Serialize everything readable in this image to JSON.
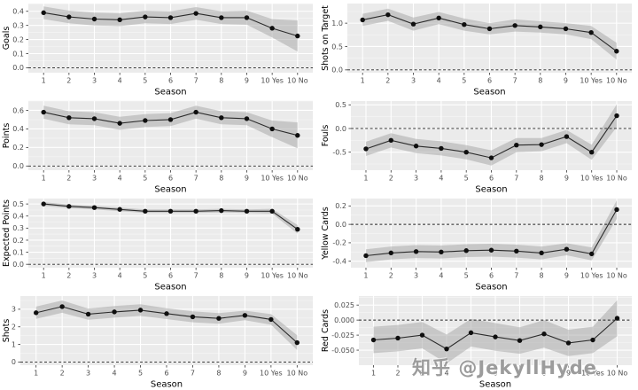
{
  "watermark": {
    "text": "知乎 @JekyllHyde",
    "color": "#949494"
  },
  "theme": {
    "panel_bg": "#EBEBEB",
    "grid_major": "#FFFFFF",
    "grid_minor": "#F5F5F5",
    "ribbon": "#A3A3A3",
    "ribbon_opacity": 0.5,
    "line": "#2B2B2B",
    "point": "#0F0F0F",
    "tick_text": "#4D4D4D",
    "axis_title": "#000000",
    "zero_line": "#222222"
  },
  "chart_data": [
    {
      "name": "goals",
      "type": "line",
      "xlabel": "Season",
      "ylabel": "Goals",
      "categories": [
        "1",
        "2",
        "3",
        "4",
        "5",
        "6",
        "7",
        "8",
        "9",
        "10 Yes",
        "10 No"
      ],
      "values": [
        0.39,
        0.36,
        0.345,
        0.34,
        0.36,
        0.355,
        0.385,
        0.355,
        0.355,
        0.28,
        0.225
      ],
      "lower": [
        0.345,
        0.315,
        0.3,
        0.295,
        0.315,
        0.31,
        0.34,
        0.31,
        0.305,
        0.215,
        0.115
      ],
      "upper": [
        0.435,
        0.405,
        0.39,
        0.385,
        0.405,
        0.4,
        0.43,
        0.4,
        0.405,
        0.345,
        0.335
      ],
      "yticks": [
        0.0,
        0.1,
        0.2,
        0.3,
        0.4
      ],
      "ytick_labels": [
        "0.0",
        "0.1",
        "0.2",
        "0.3",
        "0.4"
      ],
      "ylim": [
        -0.035,
        0.455
      ],
      "ref_line": 0
    },
    {
      "name": "shots-on-target",
      "type": "line",
      "xlabel": "Season",
      "ylabel": "Shots on Target",
      "categories": [
        "1",
        "2",
        "3",
        "4",
        "5",
        "6",
        "7",
        "8",
        "9",
        "10 Yes",
        "10 No"
      ],
      "values": [
        1.07,
        1.18,
        0.98,
        1.11,
        0.97,
        0.88,
        0.95,
        0.92,
        0.88,
        0.8,
        0.4
      ],
      "lower": [
        0.94,
        1.05,
        0.84,
        0.98,
        0.84,
        0.76,
        0.82,
        0.8,
        0.76,
        0.66,
        0.22
      ],
      "upper": [
        1.2,
        1.31,
        1.12,
        1.24,
        1.1,
        1.0,
        1.08,
        1.04,
        1.0,
        0.94,
        0.58
      ],
      "yticks": [
        0.0,
        0.5,
        1.0
      ],
      "ytick_labels": [
        "0.0",
        "0.5",
        "1.0"
      ],
      "ylim": [
        -0.06,
        1.42
      ],
      "ref_line": 0
    },
    {
      "name": "points",
      "type": "line",
      "xlabel": "Season",
      "ylabel": "Points",
      "categories": [
        "1",
        "2",
        "3",
        "4",
        "5",
        "6",
        "7",
        "8",
        "9",
        "10 Yes",
        "10 No"
      ],
      "values": [
        0.58,
        0.52,
        0.51,
        0.46,
        0.49,
        0.5,
        0.58,
        0.52,
        0.51,
        0.4,
        0.33
      ],
      "lower": [
        0.51,
        0.45,
        0.44,
        0.39,
        0.42,
        0.43,
        0.51,
        0.45,
        0.44,
        0.31,
        0.19
      ],
      "upper": [
        0.65,
        0.59,
        0.58,
        0.53,
        0.56,
        0.57,
        0.65,
        0.59,
        0.58,
        0.49,
        0.47
      ],
      "yticks": [
        0.0,
        0.2,
        0.4,
        0.6
      ],
      "ytick_labels": [
        "0.0",
        "0.2",
        "0.4",
        "0.6"
      ],
      "ylim": [
        -0.045,
        0.7
      ],
      "ref_line": 0
    },
    {
      "name": "fouls",
      "type": "line",
      "xlabel": "Season",
      "ylabel": "Fouls",
      "categories": [
        "1",
        "2",
        "3",
        "4",
        "5",
        "6",
        "7",
        "8",
        "9",
        "10 Yes",
        "10 No"
      ],
      "values": [
        -0.43,
        -0.25,
        -0.37,
        -0.42,
        -0.5,
        -0.62,
        -0.35,
        -0.34,
        -0.17,
        -0.5,
        0.27
      ],
      "lower": [
        -0.58,
        -0.4,
        -0.52,
        -0.57,
        -0.65,
        -0.78,
        -0.5,
        -0.48,
        -0.31,
        -0.66,
        0.03
      ],
      "upper": [
        -0.28,
        -0.1,
        -0.22,
        -0.27,
        -0.35,
        -0.46,
        -0.2,
        -0.2,
        -0.03,
        -0.34,
        0.51
      ],
      "yticks": [
        -0.5,
        0.0,
        0.5
      ],
      "ytick_labels": [
        "-0.5",
        "0.0",
        "0.5"
      ],
      "ylim": [
        -0.88,
        0.58
      ],
      "ref_line": 0
    },
    {
      "name": "expected-points",
      "type": "line",
      "xlabel": "Season",
      "ylabel": "Expected Points",
      "categories": [
        "1",
        "2",
        "3",
        "4",
        "5",
        "6",
        "7",
        "8",
        "9",
        "10 Yes",
        "10 No"
      ],
      "values": [
        0.5,
        0.48,
        0.47,
        0.455,
        0.44,
        0.44,
        0.44,
        0.445,
        0.44,
        0.44,
        0.29
      ],
      "lower": [
        0.485,
        0.465,
        0.455,
        0.44,
        0.425,
        0.425,
        0.425,
        0.43,
        0.425,
        0.42,
        0.255
      ],
      "upper": [
        0.515,
        0.495,
        0.485,
        0.47,
        0.455,
        0.455,
        0.455,
        0.46,
        0.455,
        0.46,
        0.325
      ],
      "yticks": [
        0.0,
        0.1,
        0.2,
        0.3,
        0.4,
        0.5
      ],
      "ytick_labels": [
        "0.0",
        "0.1",
        "0.2",
        "0.3",
        "0.4",
        "0.5"
      ],
      "ylim": [
        -0.028,
        0.545
      ],
      "ref_line": 0
    },
    {
      "name": "yellow-cards",
      "type": "line",
      "xlabel": "Season",
      "ylabel": "Yellow Cards",
      "categories": [
        "1",
        "2",
        "3",
        "4",
        "5",
        "6",
        "7",
        "8",
        "9",
        "10 Yes",
        "10 No"
      ],
      "values": [
        -0.34,
        -0.31,
        -0.295,
        -0.3,
        -0.285,
        -0.28,
        -0.29,
        -0.31,
        -0.27,
        -0.32,
        0.16
      ],
      "lower": [
        -0.41,
        -0.38,
        -0.365,
        -0.37,
        -0.355,
        -0.35,
        -0.36,
        -0.38,
        -0.335,
        -0.39,
        0.06
      ],
      "upper": [
        -0.27,
        -0.24,
        -0.225,
        -0.23,
        -0.215,
        -0.21,
        -0.22,
        -0.24,
        -0.205,
        -0.25,
        0.26
      ],
      "yticks": [
        -0.4,
        -0.2,
        0.0,
        0.2
      ],
      "ytick_labels": [
        "-0.4",
        "-0.2",
        "0.0",
        "0.2"
      ],
      "ylim": [
        -0.47,
        0.28
      ],
      "ref_line": 0
    },
    {
      "name": "shots",
      "type": "line",
      "xlabel": "Season",
      "ylabel": "Shots",
      "categories": [
        "1",
        "2",
        "3",
        "4",
        "5",
        "6",
        "7",
        "8",
        "9",
        "10 Yes",
        "10 No"
      ],
      "values": [
        2.8,
        3.15,
        2.72,
        2.85,
        2.95,
        2.75,
        2.57,
        2.48,
        2.65,
        2.42,
        1.1
      ],
      "lower": [
        2.45,
        2.8,
        2.4,
        2.52,
        2.62,
        2.44,
        2.26,
        2.18,
        2.38,
        2.12,
        0.68
      ],
      "upper": [
        3.15,
        3.5,
        3.04,
        3.18,
        3.28,
        3.06,
        2.88,
        2.78,
        2.92,
        2.72,
        1.52
      ],
      "yticks": [
        0,
        1,
        2,
        3
      ],
      "ytick_labels": [
        "0",
        "1",
        "2",
        "3"
      ],
      "ylim": [
        -0.18,
        3.75
      ],
      "ref_line": 0
    },
    {
      "name": "red-cards",
      "type": "line",
      "xlabel": "Season",
      "ylabel": "Red Cards",
      "categories": [
        "1",
        "2",
        "3",
        "4",
        "5",
        "6",
        "7",
        "8",
        "9",
        "10 Yes",
        "10 No"
      ],
      "values": [
        -0.033,
        -0.03,
        -0.025,
        -0.048,
        -0.021,
        -0.028,
        -0.034,
        -0.023,
        -0.038,
        -0.033,
        0.003
      ],
      "lower": [
        -0.055,
        -0.052,
        -0.047,
        -0.072,
        -0.044,
        -0.051,
        -0.056,
        -0.046,
        -0.06,
        -0.055,
        -0.027
      ],
      "upper": [
        -0.011,
        -0.008,
        -0.003,
        -0.024,
        0.002,
        -0.005,
        -0.012,
        0.0,
        -0.016,
        -0.011,
        0.033
      ],
      "yticks": [
        -0.05,
        -0.025,
        0.0,
        0.025
      ],
      "ytick_labels": [
        "-0.050",
        "-0.025",
        "0.000",
        "0.025"
      ],
      "ylim": [
        -0.075,
        0.04
      ],
      "ref_line": 0
    }
  ]
}
